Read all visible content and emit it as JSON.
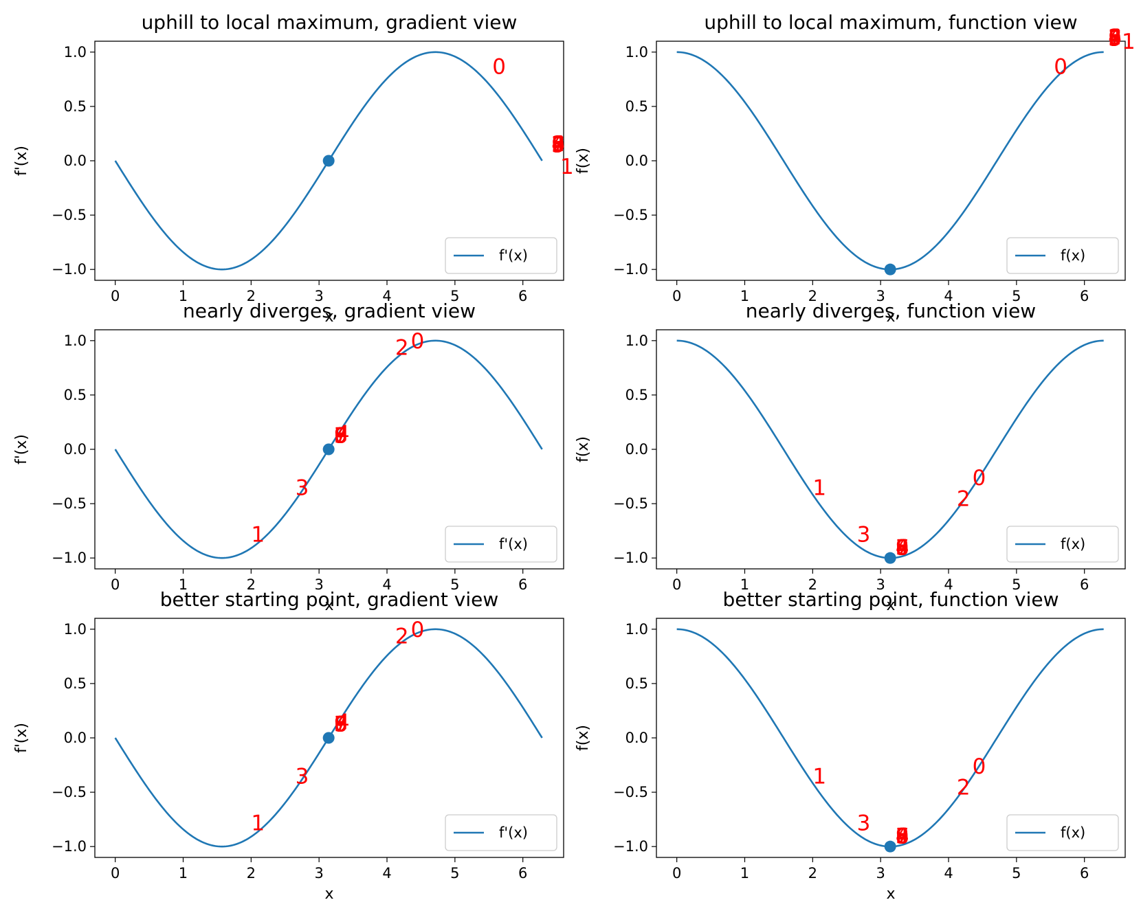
{
  "figure": {
    "line_color": "#1f77b4",
    "marker_color": "#1f77b4",
    "annotation_color": "#ff0000"
  },
  "chart_data": [
    {
      "type": "line",
      "title": "uphill to local maximum, gradient view",
      "xlabel": "x",
      "ylabel": "f'(x)",
      "function": "-sin(x)",
      "xlim": [
        -0.3,
        6.6
      ],
      "ylim": [
        -1.1,
        1.1
      ],
      "xticks": [
        0,
        1,
        2,
        3,
        4,
        5,
        6
      ],
      "yticks": [
        -1.0,
        -0.5,
        0.0,
        0.5,
        1.0
      ],
      "ytick_labels": [
        "−1.0",
        "−0.5",
        "0.0",
        "0.5",
        "1.0"
      ],
      "series": [
        {
          "name": "f'(x)",
          "x_range": [
            0,
            6.283
          ],
          "samples": 200
        }
      ],
      "marker": {
        "x": 3.1416,
        "y": 0.0
      },
      "annotations": [
        {
          "label": "0",
          "x": 5.55,
          "y": 0.8
        },
        {
          "label": "1",
          "x": 6.55,
          "y": -0.12
        },
        {
          "label": "2",
          "x": 6.42,
          "y": 0.09
        },
        {
          "label": "3",
          "x": 6.42,
          "y": 0.08
        },
        {
          "label": "4",
          "x": 6.42,
          "y": 0.09
        },
        {
          "label": "5",
          "x": 6.42,
          "y": 0.08
        },
        {
          "label": "6",
          "x": 6.42,
          "y": 0.09
        },
        {
          "label": "7",
          "x": 6.42,
          "y": 0.08
        },
        {
          "label": "8",
          "x": 6.42,
          "y": 0.09
        },
        {
          "label": "9",
          "x": 6.42,
          "y": 0.08
        }
      ],
      "legend": {
        "position": "lower-right",
        "labels": [
          "f'(x)"
        ]
      }
    },
    {
      "type": "line",
      "title": "uphill to local maximum, function view",
      "xlabel": "x",
      "ylabel": "f(x)",
      "function": "cos(x)",
      "xlim": [
        -0.3,
        6.6
      ],
      "ylim": [
        -1.1,
        1.1
      ],
      "xticks": [
        0,
        1,
        2,
        3,
        4,
        5,
        6
      ],
      "yticks": [
        -1.0,
        -0.5,
        0.0,
        0.5,
        1.0
      ],
      "ytick_labels": [
        "−1.0",
        "−0.5",
        "0.0",
        "0.5",
        "1.0"
      ],
      "series": [
        {
          "name": "f(x)",
          "x_range": [
            0,
            6.283
          ],
          "samples": 200
        }
      ],
      "marker": {
        "x": 3.1416,
        "y": -1.0
      },
      "annotations": [
        {
          "label": "0",
          "x": 5.55,
          "y": 0.8
        },
        {
          "label": "1",
          "x": 6.55,
          "y": 1.03
        },
        {
          "label": "2",
          "x": 6.35,
          "y": 1.07
        },
        {
          "label": "3",
          "x": 6.35,
          "y": 1.06
        },
        {
          "label": "4",
          "x": 6.35,
          "y": 1.07
        },
        {
          "label": "5",
          "x": 6.35,
          "y": 1.06
        },
        {
          "label": "6",
          "x": 6.35,
          "y": 1.07
        },
        {
          "label": "7",
          "x": 6.35,
          "y": 1.06
        },
        {
          "label": "8",
          "x": 6.35,
          "y": 1.07
        },
        {
          "label": "9",
          "x": 6.35,
          "y": 1.06
        }
      ],
      "legend": {
        "position": "lower-right",
        "labels": [
          "f(x)"
        ]
      }
    },
    {
      "type": "line",
      "title": "nearly diverges, gradient view",
      "xlabel": "x",
      "ylabel": "f'(x)",
      "function": "-sin(x)",
      "xlim": [
        -0.3,
        6.6
      ],
      "ylim": [
        -1.1,
        1.1
      ],
      "xticks": [
        0,
        1,
        2,
        3,
        4,
        5,
        6
      ],
      "yticks": [
        -1.0,
        -0.5,
        0.0,
        0.5,
        1.0
      ],
      "ytick_labels": [
        "−1.0",
        "−0.5",
        "0.0",
        "0.5",
        "1.0"
      ],
      "series": [
        {
          "name": "f'(x)",
          "x_range": [
            0,
            6.283
          ],
          "samples": 200
        }
      ],
      "marker": {
        "x": 3.1416,
        "y": 0.0
      },
      "annotations": [
        {
          "label": "0",
          "x": 4.35,
          "y": 0.93
        },
        {
          "label": "1",
          "x": 2.0,
          "y": -0.85
        },
        {
          "label": "2",
          "x": 4.12,
          "y": 0.87
        },
        {
          "label": "3",
          "x": 2.65,
          "y": -0.42
        },
        {
          "label": "4",
          "x": 3.25,
          "y": 0.08
        },
        {
          "label": "5",
          "x": 3.22,
          "y": 0.06
        },
        {
          "label": "6",
          "x": 3.22,
          "y": 0.06
        },
        {
          "label": "7",
          "x": 3.22,
          "y": 0.06
        },
        {
          "label": "8",
          "x": 3.22,
          "y": 0.06
        },
        {
          "label": "9",
          "x": 3.22,
          "y": 0.06
        }
      ],
      "legend": {
        "position": "lower-right",
        "labels": [
          "f'(x)"
        ]
      }
    },
    {
      "type": "line",
      "title": "nearly diverges, function view",
      "xlabel": "x",
      "ylabel": "f(x)",
      "function": "cos(x)",
      "xlim": [
        -0.3,
        6.6
      ],
      "ylim": [
        -1.1,
        1.1
      ],
      "xticks": [
        0,
        1,
        2,
        3,
        4,
        5,
        6
      ],
      "yticks": [
        -1.0,
        -0.5,
        0.0,
        0.5,
        1.0
      ],
      "ytick_labels": [
        "−1.0",
        "−0.5",
        "0.0",
        "0.5",
        "1.0"
      ],
      "series": [
        {
          "name": "f(x)",
          "x_range": [
            0,
            6.283
          ],
          "samples": 200
        }
      ],
      "marker": {
        "x": 3.1416,
        "y": -1.0
      },
      "annotations": [
        {
          "label": "0",
          "x": 4.35,
          "y": -0.33
        },
        {
          "label": "1",
          "x": 2.0,
          "y": -0.42
        },
        {
          "label": "2",
          "x": 4.12,
          "y": -0.52
        },
        {
          "label": "3",
          "x": 2.65,
          "y": -0.85
        },
        {
          "label": "4",
          "x": 3.22,
          "y": -0.97
        },
        {
          "label": "5",
          "x": 3.22,
          "y": -0.97
        },
        {
          "label": "6",
          "x": 3.22,
          "y": -0.97
        },
        {
          "label": "7",
          "x": 3.22,
          "y": -0.97
        },
        {
          "label": "8",
          "x": 3.22,
          "y": -0.97
        },
        {
          "label": "9",
          "x": 3.22,
          "y": -0.97
        }
      ],
      "legend": {
        "position": "lower-right",
        "labels": [
          "f(x)"
        ]
      }
    },
    {
      "type": "line",
      "title": "better starting point, gradient view",
      "xlabel": "x",
      "ylabel": "f'(x)",
      "function": "-sin(x)",
      "xlim": [
        -0.3,
        6.6
      ],
      "ylim": [
        -1.1,
        1.1
      ],
      "xticks": [
        0,
        1,
        2,
        3,
        4,
        5,
        6
      ],
      "yticks": [
        -1.0,
        -0.5,
        0.0,
        0.5,
        1.0
      ],
      "ytick_labels": [
        "−1.0",
        "−0.5",
        "0.0",
        "0.5",
        "1.0"
      ],
      "series": [
        {
          "name": "f'(x)",
          "x_range": [
            0,
            6.283
          ],
          "samples": 200
        }
      ],
      "marker": {
        "x": 3.1416,
        "y": 0.0
      },
      "annotations": [
        {
          "label": "0",
          "x": 4.35,
          "y": 0.93
        },
        {
          "label": "1",
          "x": 2.0,
          "y": -0.85
        },
        {
          "label": "2",
          "x": 4.12,
          "y": 0.87
        },
        {
          "label": "3",
          "x": 2.65,
          "y": -0.42
        },
        {
          "label": "4",
          "x": 3.25,
          "y": 0.08
        },
        {
          "label": "5",
          "x": 3.22,
          "y": 0.06
        },
        {
          "label": "6",
          "x": 3.22,
          "y": 0.06
        },
        {
          "label": "7",
          "x": 3.22,
          "y": 0.06
        },
        {
          "label": "8",
          "x": 3.22,
          "y": 0.06
        },
        {
          "label": "9",
          "x": 3.22,
          "y": 0.06
        }
      ],
      "legend": {
        "position": "lower-right",
        "labels": [
          "f'(x)"
        ]
      }
    },
    {
      "type": "line",
      "title": "better starting point, function view",
      "xlabel": "x",
      "ylabel": "f(x)",
      "function": "cos(x)",
      "xlim": [
        -0.3,
        6.6
      ],
      "ylim": [
        -1.1,
        1.1
      ],
      "xticks": [
        0,
        1,
        2,
        3,
        4,
        5,
        6
      ],
      "yticks": [
        -1.0,
        -0.5,
        0.0,
        0.5,
        1.0
      ],
      "ytick_labels": [
        "−1.0",
        "−0.5",
        "0.0",
        "0.5",
        "1.0"
      ],
      "series": [
        {
          "name": "f(x)",
          "x_range": [
            0,
            6.283
          ],
          "samples": 200
        }
      ],
      "marker": {
        "x": 3.1416,
        "y": -1.0
      },
      "annotations": [
        {
          "label": "0",
          "x": 4.35,
          "y": -0.33
        },
        {
          "label": "1",
          "x": 2.0,
          "y": -0.42
        },
        {
          "label": "2",
          "x": 4.12,
          "y": -0.52
        },
        {
          "label": "3",
          "x": 2.65,
          "y": -0.85
        },
        {
          "label": "4",
          "x": 3.22,
          "y": -0.97
        },
        {
          "label": "5",
          "x": 3.22,
          "y": -0.97
        },
        {
          "label": "6",
          "x": 3.22,
          "y": -0.97
        },
        {
          "label": "7",
          "x": 3.22,
          "y": -0.97
        },
        {
          "label": "8",
          "x": 3.22,
          "y": -0.97
        },
        {
          "label": "9",
          "x": 3.22,
          "y": -0.97
        }
      ],
      "legend": {
        "position": "lower-right",
        "labels": [
          "f(x)"
        ]
      }
    }
  ]
}
